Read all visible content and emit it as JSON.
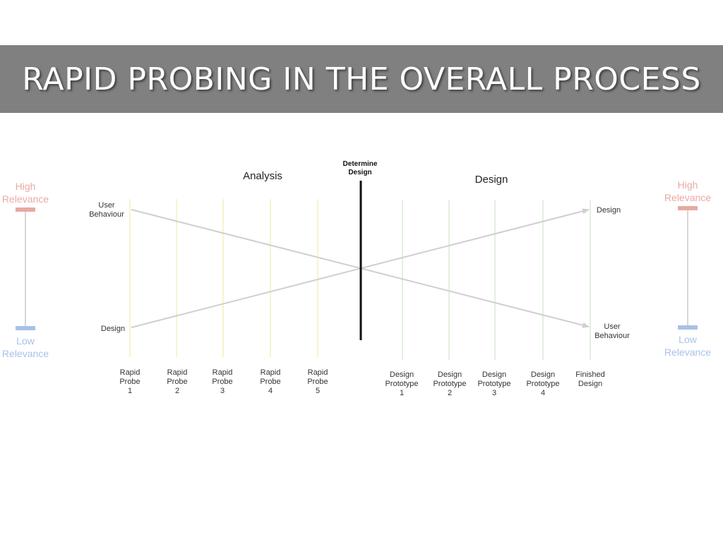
{
  "title": "RAPID PROBING IN THE OVERALL PROCESS",
  "colors": {
    "title_bar": "#808080",
    "high_relevance": "#e8a9a3",
    "low_relevance": "#a9c1e8",
    "scale_line": "#d6d6d6",
    "probe_line": "#f6efbf",
    "prototype_line": "#d9ecd6",
    "cross_line": "#cfcfcf",
    "divider": "#111111"
  },
  "phases": {
    "analysis": "Analysis",
    "design": "Design",
    "divider_label": [
      "Determine",
      "Design"
    ]
  },
  "left_axis": {
    "top": [
      "User",
      "Behaviour"
    ],
    "bottom": "Design"
  },
  "right_axis": {
    "top": "Design",
    "bottom": [
      "User",
      "Behaviour"
    ]
  },
  "relevance_scale": {
    "high": [
      "High",
      "Relevance"
    ],
    "low": [
      "Low",
      "Relevance"
    ]
  },
  "probes": [
    [
      "Rapid",
      "Probe",
      "1"
    ],
    [
      "Rapid",
      "Probe",
      "2"
    ],
    [
      "Rapid",
      "Probe",
      "3"
    ],
    [
      "Rapid",
      "Probe",
      "4"
    ],
    [
      "Rapid",
      "Probe",
      "5"
    ]
  ],
  "prototypes": [
    [
      "Design",
      "Prototype",
      "1"
    ],
    [
      "Design",
      "Prototype",
      "2"
    ],
    [
      "Design",
      "Prototype",
      "3"
    ],
    [
      "Design",
      "Prototype",
      "4"
    ],
    [
      "Finished",
      "Design"
    ]
  ]
}
